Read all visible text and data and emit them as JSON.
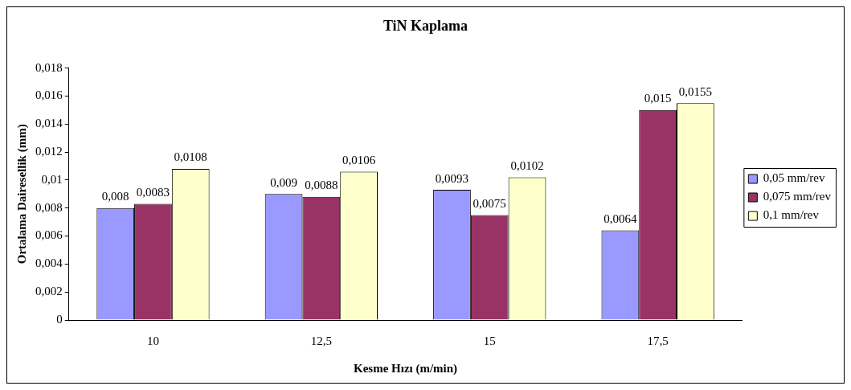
{
  "chart_data": {
    "type": "bar",
    "title": "TiN Kaplama",
    "xlabel": "Kesme Hızı (m/min)",
    "ylabel": "Ortalama Dairesellik (mm)",
    "categories": [
      "10",
      "12,5",
      "15",
      "17,5"
    ],
    "series": [
      {
        "name": "0,05 mm/rev",
        "color": "#9999ff",
        "values": [
          0.008,
          0.009,
          0.0093,
          0.0064
        ],
        "value_labels": [
          "0,008",
          "0,009",
          "0,0093",
          "0,0064"
        ]
      },
      {
        "name": "0,075 mm/rev",
        "color": "#993366",
        "values": [
          0.0083,
          0.0088,
          0.0075,
          0.015
        ],
        "value_labels": [
          "0,0083",
          "0,0088",
          "0,0075",
          "0,015"
        ]
      },
      {
        "name": "0,1 mm/rev",
        "color": "#ffffcc",
        "values": [
          0.0108,
          0.0106,
          0.0102,
          0.0155
        ],
        "value_labels": [
          "0,0108",
          "0,0106",
          "0,0102",
          "0,0155"
        ]
      }
    ],
    "ylim": [
      0,
      0.018
    ],
    "yticks": [
      0,
      {
        "value": 0.002,
        "label": "0,002"
      },
      {
        "value": 0.004,
        "label": "0,004"
      },
      {
        "value": 0.006,
        "label": "0,006"
      },
      {
        "value": 0.008,
        "label": "0,008"
      },
      {
        "value": 0.01,
        "label": "0,01"
      },
      {
        "value": 0.012,
        "label": "0,012"
      },
      {
        "value": 0.014,
        "label": "0,014"
      },
      {
        "value": 0.016,
        "label": "0,016"
      },
      {
        "value": 0.018,
        "label": "0,018"
      }
    ],
    "grid": false,
    "legend": "right"
  }
}
